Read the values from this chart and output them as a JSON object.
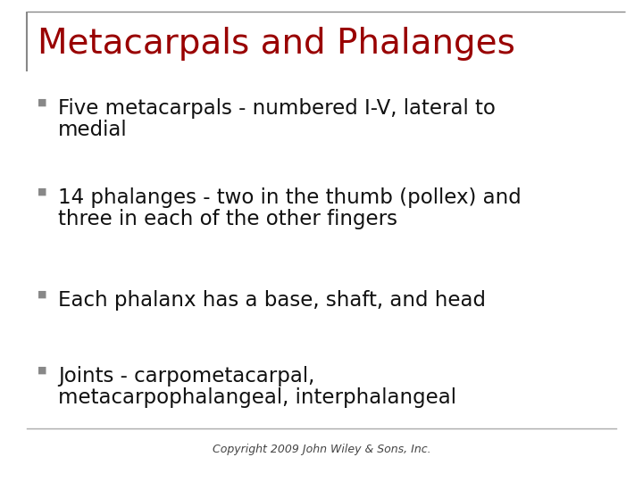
{
  "title": "Metacarpals and Phalanges",
  "title_color": "#990000",
  "title_fontsize": 28,
  "background_color": "#ffffff",
  "bullet_color": "#888888",
  "bullet_char": "■",
  "text_color": "#111111",
  "text_fontsize": 16.5,
  "bullet_items": [
    [
      "Five metacarpals - numbered I-V, lateral to",
      "medial"
    ],
    [
      "14 phalanges - two in the thumb (pollex) and",
      "three in each of the other fingers"
    ],
    [
      "Each phalanx has a base, shaft, and head"
    ],
    [
      "Joints - carpometacarpal,",
      "metacarpophalangeal, interphalangeal"
    ]
  ],
  "left_bar_color": "#888888",
  "top_bar_color": "#888888",
  "bottom_line_color": "#aaaaaa",
  "copyright_text": "Copyright 2009 John Wiley & Sons, Inc.",
  "copyright_fontsize": 9,
  "copyright_color": "#444444"
}
